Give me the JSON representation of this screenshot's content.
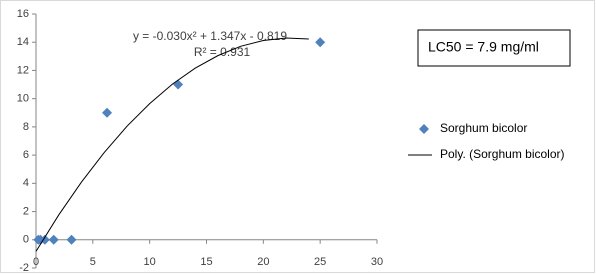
{
  "chart_data": {
    "type": "scatter",
    "xlim": [
      0,
      30
    ],
    "xticks": [
      0,
      5,
      10,
      15,
      20,
      25,
      30
    ],
    "ylim": [
      -2,
      16
    ],
    "yticks": [
      -2,
      0,
      2,
      4,
      6,
      8,
      10,
      12,
      14,
      16
    ],
    "grid": false,
    "legend": "right",
    "series": [
      {
        "name": "Sorghum bicolor",
        "style": "marker",
        "color": "#4f81bd",
        "x": [
          0.2,
          0.39,
          0.78,
          1.56,
          3.125,
          6.25,
          12.5,
          25
        ],
        "values": [
          0,
          0,
          0,
          0,
          0,
          9,
          11,
          14
        ]
      },
      {
        "name": "Poly. (Sorghum bicolor)",
        "style": "line",
        "color": "#000000",
        "x": [
          0,
          2,
          4,
          6,
          8,
          10,
          12,
          14,
          16,
          18,
          20,
          22,
          24
        ],
        "values": [
          -0.82,
          1.76,
          4.09,
          6.18,
          8.04,
          9.65,
          11.03,
          12.16,
          13.05,
          13.71,
          14.12,
          14.3,
          14.23
        ]
      }
    ],
    "annotations": [
      "y = -0.030x² + 1.347x - 0.819",
      "R² = 0.931",
      "LC50 = 7.9 mg/ml"
    ]
  }
}
